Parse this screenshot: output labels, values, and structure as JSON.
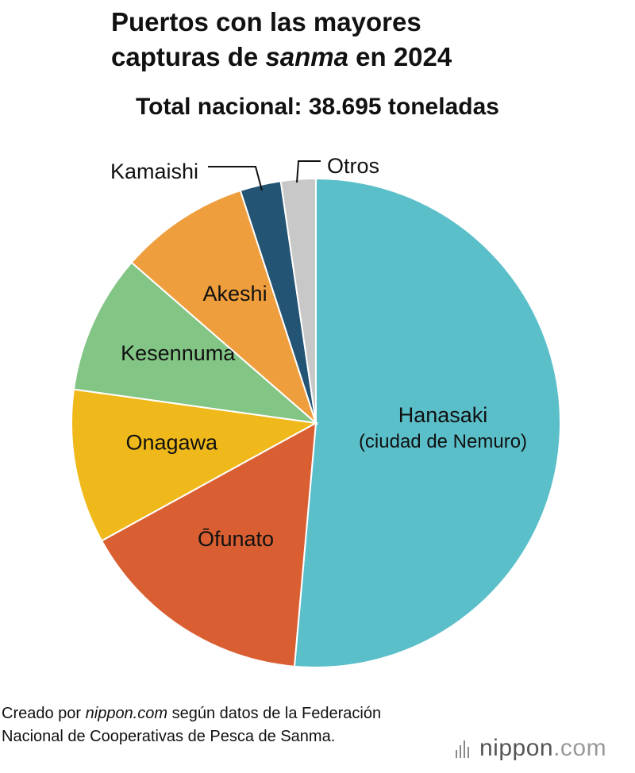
{
  "title_line1": "Puertos con las mayores",
  "title_line2_pre": "capturas de ",
  "title_line2_italic": "sanma",
  "title_line2_post": " en 2024",
  "subtitle": "Total nacional: 38.695 toneladas",
  "chart_data": {
    "type": "pie",
    "title": "Puertos con las mayores capturas de sanma en 2024",
    "subtitle": "Total nacional: 38.695 toneladas",
    "unit": "%",
    "slices": [
      {
        "label": "Hanasaki",
        "sublabel": "(ciudad de Nemuro)",
        "value": 51.4,
        "color": "#5bbfca",
        "text_color": "#111111"
      },
      {
        "label": "Ōfunato",
        "value": 15.6,
        "color": "#d95f33",
        "text_color": "#111111"
      },
      {
        "label": "Onagawa",
        "value": 10.2,
        "color": "#f0b91b",
        "text_color": "#111111"
      },
      {
        "label": "Kesennuma",
        "value": 9.2,
        "color": "#82c585",
        "text_color": "#111111"
      },
      {
        "label": "Akeshi",
        "value": 8.6,
        "color": "#ef9e3d",
        "text_color": "#111111"
      },
      {
        "label": "Kamaishi",
        "value": 2.7,
        "color": "#245474",
        "text_color": "#111111"
      },
      {
        "label": "Otros",
        "value": 2.3,
        "color": "#c8c8c8",
        "text_color": "#111111"
      }
    ]
  },
  "footer": {
    "pre": "Creado por ",
    "source_italic": "nippon.com",
    "post": " según datos de la Federación Nacional de Cooperativas de Pesca de Sanma."
  },
  "brand": {
    "name": "nippon",
    "suffix": ".com"
  }
}
